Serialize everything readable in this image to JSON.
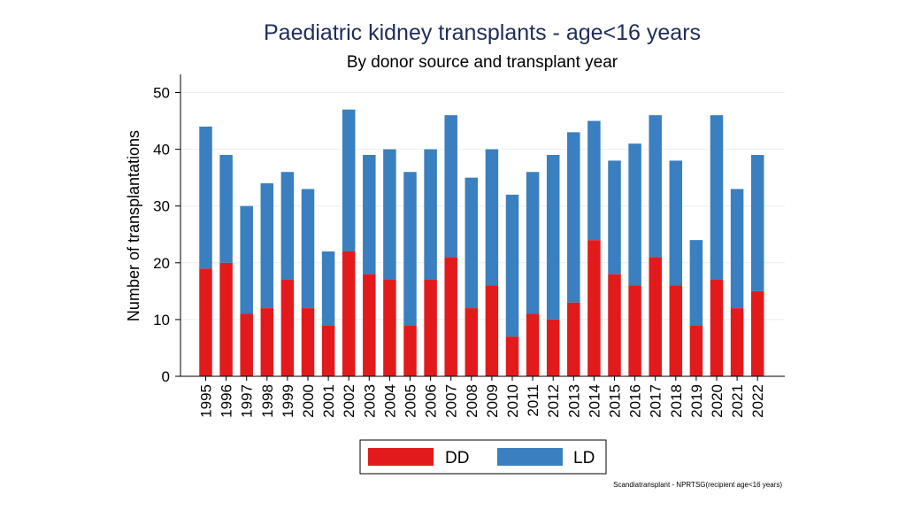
{
  "chart_data": {
    "type": "bar",
    "stacked": true,
    "title": "Paediatric kidney transplants - age<16 years",
    "subtitle": "By donor source and transplant year",
    "xlabel": "",
    "ylabel": "Number of transplantations",
    "ylim": [
      0,
      50
    ],
    "yticks": [
      0,
      10,
      20,
      30,
      40,
      50
    ],
    "grid": true,
    "categories": [
      "1995",
      "1996",
      "1997",
      "1998",
      "1999",
      "2000",
      "2001",
      "2002",
      "2003",
      "2004",
      "2005",
      "2006",
      "2007",
      "2008",
      "2009",
      "2010",
      "2011",
      "2012",
      "2013",
      "2014",
      "2015",
      "2016",
      "2017",
      "2018",
      "2019",
      "2020",
      "2021",
      "2022"
    ],
    "series": [
      {
        "name": "DD",
        "color": "#e31a1c",
        "values": [
          19,
          20,
          11,
          12,
          17,
          12,
          9,
          22,
          18,
          17,
          9,
          17,
          21,
          12,
          16,
          7,
          11,
          10,
          13,
          24,
          18,
          16,
          21,
          16,
          9,
          17,
          12,
          15
        ]
      },
      {
        "name": "LD",
        "color": "#3a7fbf",
        "values": [
          25,
          19,
          19,
          22,
          19,
          21,
          13,
          25,
          21,
          23,
          27,
          23,
          25,
          23,
          24,
          25,
          25,
          29,
          30,
          21,
          20,
          25,
          25,
          22,
          15,
          29,
          21,
          24
        ]
      }
    ],
    "legend": "bottom-center",
    "source_note": "Scandiatransplant - NPRTSG(recipient age<16 years)"
  }
}
